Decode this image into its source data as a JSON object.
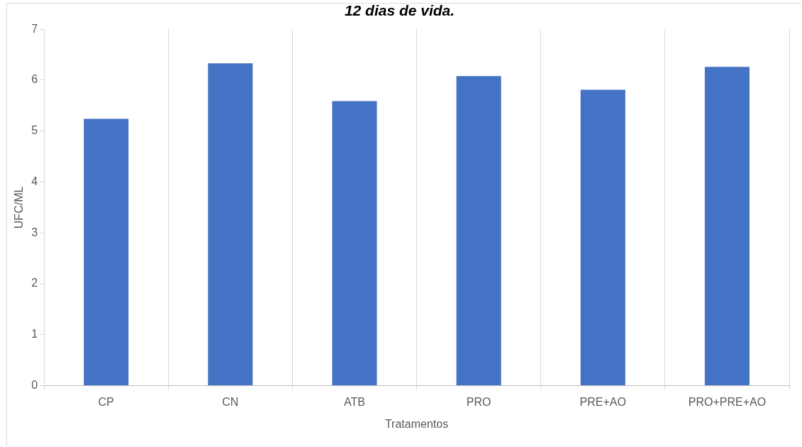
{
  "chart_data": {
    "type": "bar",
    "title": "12 dias de vida.",
    "xlabel": "Tratamentos",
    "ylabel": "UFC/ML",
    "categories": [
      "CP",
      "CN",
      "ATB",
      "PRO",
      "PRE+AO",
      "PRO+PRE+AO"
    ],
    "values": [
      5.24,
      6.33,
      5.59,
      6.08,
      5.81,
      6.26
    ],
    "color": "#4472c4",
    "ylim": [
      0,
      7
    ],
    "yticks": [
      0,
      1,
      2,
      3,
      4,
      5,
      6,
      7
    ],
    "grid": "x",
    "legend": false
  }
}
